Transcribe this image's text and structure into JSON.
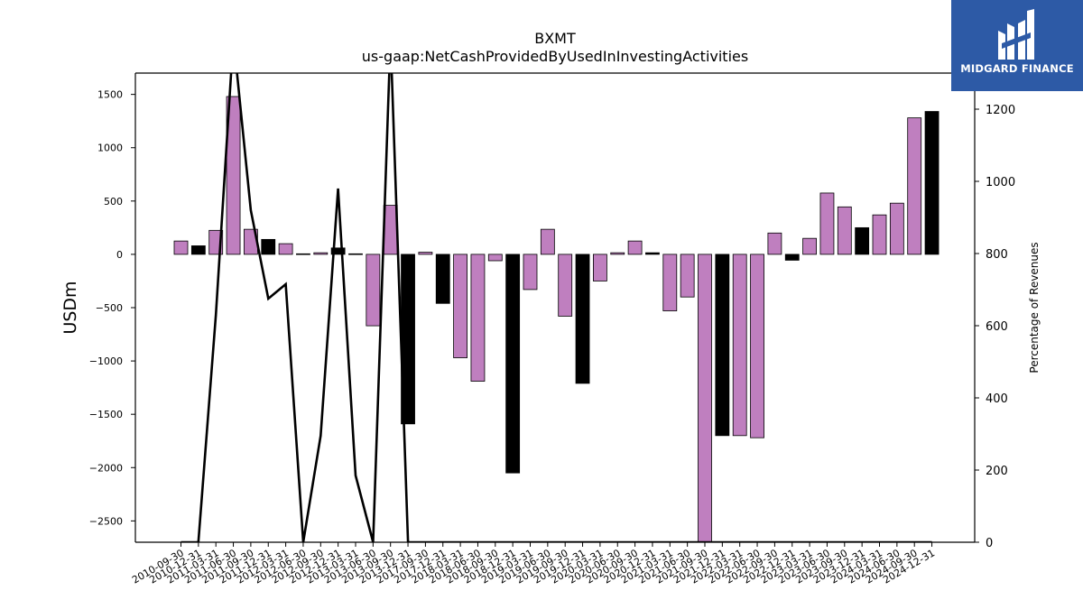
{
  "chart_data": {
    "type": "bar",
    "title": "BXMT",
    "subtitle": "us-gaap:NetCashProvidedByUsedInInvestingActivities",
    "ylabel": "USDm",
    "y2label": "Percentage of Revenues",
    "ylim": [
      -2700,
      1700
    ],
    "y2lim": [
      0,
      1300
    ],
    "yticks": [
      -2500,
      -2000,
      -1500,
      -1000,
      -500,
      0,
      500,
      1000,
      1500
    ],
    "y2ticks": [
      0,
      200,
      400,
      600,
      800,
      1000,
      1200
    ],
    "colors": {
      "quarter": "#bf7fbf",
      "year_end": "#000000",
      "line": "#000000"
    },
    "categories": [
      "2010-09-30",
      "2010-12-31",
      "2011-03-31",
      "2011-06-30",
      "2011-09-30",
      "2011-12-31",
      "2012-03-31",
      "2012-06-30",
      "2012-09-30",
      "2012-12-31",
      "2013-03-31",
      "2013-06-30",
      "2013-09-30",
      "2013-12-31",
      "2017-09-30",
      "2017-12-31",
      "2018-03-31",
      "2018-06-30",
      "2018-09-30",
      "2018-12-31",
      "2019-03-31",
      "2019-06-30",
      "2019-09-30",
      "2019-12-31",
      "2020-03-31",
      "2020-06-30",
      "2020-09-30",
      "2020-12-31",
      "2021-03-31",
      "2021-06-30",
      "2021-09-30",
      "2021-12-31",
      "2022-03-31",
      "2022-06-30",
      "2022-09-30",
      "2022-12-31",
      "2023-03-31",
      "2023-06-30",
      "2023-09-30",
      "2023-12-31",
      "2024-03-31",
      "2024-06-30",
      "2024-09-30",
      "2024-12-31"
    ],
    "series": [
      {
        "values": [
          125,
          80,
          225,
          1480,
          235,
          140,
          100,
          5,
          15,
          60,
          5,
          -670,
          460,
          -1590,
          20,
          -460,
          -970,
          -1190,
          -60,
          -2050,
          -330,
          235,
          -580,
          -1210,
          -250,
          15,
          125,
          15,
          -530,
          -400,
          -2700,
          -1700,
          -1700,
          -1720,
          200,
          -55,
          150,
          575,
          445,
          250,
          370,
          480,
          1280,
          1340
        ],
        "year_end": [
          false,
          true,
          false,
          false,
          false,
          true,
          false,
          false,
          false,
          true,
          false,
          false,
          false,
          true,
          false,
          true,
          false,
          false,
          false,
          true,
          false,
          false,
          false,
          true,
          false,
          false,
          false,
          true,
          false,
          false,
          false,
          true,
          false,
          false,
          false,
          true,
          false,
          false,
          false,
          true,
          false,
          false,
          false,
          true
        ]
      },
      {
        "values": [
          0,
          0,
          630,
          1400,
          920,
          675,
          715,
          0,
          295,
          980,
          185,
          0,
          1400,
          0,
          0,
          0,
          0,
          0,
          0,
          0,
          0,
          0,
          0,
          0,
          0,
          0,
          0,
          0,
          0,
          0,
          0,
          0,
          0,
          0,
          0,
          0,
          0,
          0,
          0,
          0,
          0,
          0,
          0,
          0
        ],
        "axis": "right"
      }
    ]
  },
  "logo": {
    "text": "MIDGARD FINANCE"
  }
}
